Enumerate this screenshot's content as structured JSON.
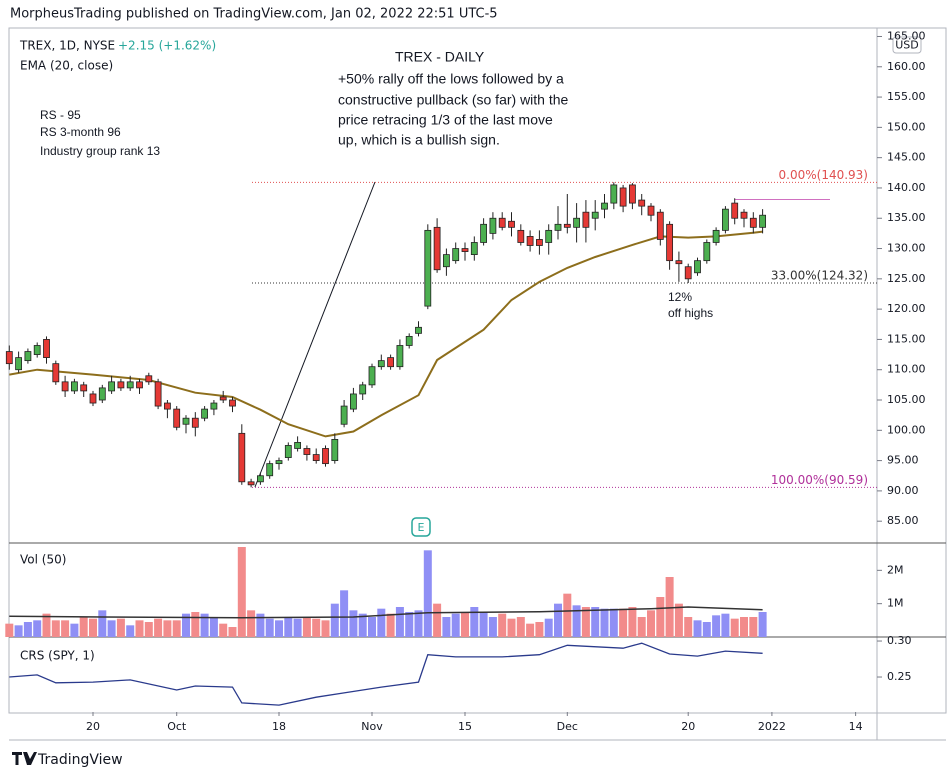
{
  "header": {
    "published": "MorpheusTrading published on TradingView.com, Jan 02, 2022 22:51 UTC-5",
    "currency": "USD",
    "footer": "TradingView"
  },
  "chart_data": [
    {
      "type": "candlestick",
      "title": "TREX, 1D, NYSE",
      "change": "+2.15 (+1.62%)",
      "ema_label": "EMA (20, close)",
      "up_color": "#4caf50",
      "down_color": "#e53935",
      "xlim": [
        0.075,
        93.3
      ],
      "ylim": [
        81.4,
        166.4
      ],
      "yticks": [
        {
          "value": 85,
          "label": "85.00"
        },
        {
          "value": 90,
          "label": "90.00"
        },
        {
          "value": 95,
          "label": "95.00"
        },
        {
          "value": 100,
          "label": "100.00"
        },
        {
          "value": 105,
          "label": "105.00"
        },
        {
          "value": 110,
          "label": "110.00"
        },
        {
          "value": 115,
          "label": "115.00"
        },
        {
          "value": 120,
          "label": "120.00"
        },
        {
          "value": 125,
          "label": "125.00"
        },
        {
          "value": 130,
          "label": "130.00"
        },
        {
          "value": 135,
          "label": "135.00"
        },
        {
          "value": 140,
          "label": "140.00"
        },
        {
          "value": 145,
          "label": "145.00"
        },
        {
          "value": 150,
          "label": "150.00"
        },
        {
          "value": 155,
          "label": "155.00"
        },
        {
          "value": 160,
          "label": "160.00"
        },
        {
          "value": 165,
          "label": "165.00"
        }
      ],
      "x": [
        0,
        1,
        2,
        3,
        4,
        5,
        6,
        7,
        8,
        9,
        10,
        11,
        12,
        13,
        14,
        15,
        16,
        17,
        18,
        19,
        20,
        21,
        22,
        23,
        24,
        25,
        26,
        27,
        28,
        29,
        30,
        31,
        32,
        33,
        34,
        35,
        36,
        37,
        38,
        39,
        40,
        41,
        42,
        43,
        44,
        45,
        46,
        47,
        48,
        49,
        50,
        51,
        52,
        53,
        54,
        55,
        56,
        57,
        58,
        59,
        60,
        61,
        62,
        63,
        64,
        65,
        66,
        67,
        68,
        69,
        70,
        71,
        72,
        73,
        74,
        75,
        76,
        77,
        78,
        79,
        80,
        81
      ],
      "open": [
        113,
        110,
        111.5,
        112.5,
        115,
        111,
        108,
        106.5,
        107.5,
        106,
        105,
        106.5,
        108,
        107,
        108,
        109,
        108,
        104.5,
        103.5,
        101,
        102,
        102,
        103.5,
        105.5,
        105,
        99.5,
        91.5,
        91.5,
        92.5,
        94.5,
        95.5,
        97,
        97,
        96,
        97,
        95,
        101,
        103.5,
        106,
        107.5,
        110.5,
        112,
        110.5,
        114,
        116,
        120.5,
        133.5,
        127,
        128,
        130,
        129,
        131,
        132.5,
        135,
        134.5,
        133,
        132,
        131.5,
        131,
        133,
        134,
        133.5,
        136,
        135,
        136.5,
        137.5,
        140,
        140.5,
        138,
        137,
        136,
        134,
        128,
        127,
        126,
        128,
        131,
        133,
        137.5,
        136,
        135,
        133.5
      ],
      "high": [
        114,
        113,
        113.5,
        114.5,
        115.5,
        111.5,
        109,
        108.5,
        108,
        106.5,
        107.5,
        109,
        108.5,
        109,
        108.5,
        109.5,
        108.5,
        105,
        104,
        102.5,
        103,
        104,
        105,
        106.5,
        105.5,
        101,
        92,
        93,
        95,
        95.5,
        98,
        99,
        97.5,
        97,
        97.5,
        99.5,
        105,
        107,
        108,
        111,
        112.5,
        112.5,
        115,
        116,
        118,
        134,
        135,
        130,
        131,
        131,
        132,
        135,
        136,
        136,
        136,
        134,
        133,
        133,
        134,
        137,
        139,
        137.5,
        138,
        138,
        139,
        140.93,
        140.5,
        140.8,
        139,
        137.5,
        136.5,
        134.5,
        129.5,
        127.5,
        128.5,
        131.5,
        133.5,
        137,
        138.3,
        136.5,
        136,
        136.5
      ],
      "low": [
        110,
        109.5,
        111,
        112,
        111,
        107.5,
        105.5,
        106,
        105.5,
        104,
        104.5,
        106,
        106.5,
        106.5,
        106,
        107.5,
        103.5,
        102,
        100,
        99.5,
        99,
        101.5,
        102.5,
        104.5,
        103,
        91,
        90.59,
        91,
        92,
        93.5,
        95,
        96.5,
        95,
        94.5,
        94,
        94.5,
        100.5,
        103,
        105,
        107,
        110,
        110,
        110,
        113.5,
        115.5,
        120,
        126,
        125.5,
        127.5,
        128,
        128,
        130.5,
        131.5,
        133,
        132,
        130.5,
        129.5,
        129,
        129,
        131.5,
        132.5,
        131,
        131,
        133,
        135,
        136.5,
        136,
        136.5,
        135.5,
        134.5,
        130.5,
        126.5,
        124.5,
        124.32,
        125.5,
        127.5,
        130.5,
        132.5,
        134,
        133.5,
        132.5,
        132.5
      ],
      "close": [
        111,
        112,
        113,
        114,
        112,
        108,
        106.5,
        108,
        106.5,
        104.5,
        107,
        108,
        107,
        108,
        107,
        108,
        104,
        103.5,
        100.5,
        102,
        100.5,
        103.5,
        104.5,
        105,
        104,
        91.5,
        91,
        92.5,
        94.5,
        95,
        97.5,
        98,
        96,
        95,
        94.5,
        98.5,
        104,
        106,
        107.5,
        110.5,
        111.5,
        110.5,
        114,
        115.5,
        117,
        133,
        126.5,
        129,
        130,
        129.5,
        131,
        134,
        135,
        133.5,
        133.5,
        131,
        130.5,
        130.5,
        133,
        134,
        133.5,
        135,
        133.5,
        136,
        137.5,
        140.5,
        137,
        137.5,
        137,
        135.5,
        131.5,
        128,
        127.5,
        125,
        128,
        131,
        133,
        136.5,
        135,
        135,
        133.5,
        135.5
      ],
      "ema": {
        "color": "#8d6e1c",
        "x": [
          0,
          3,
          9,
          15,
          20,
          24,
          27,
          30,
          34,
          37,
          40,
          44,
          46,
          51,
          54,
          57,
          60,
          63,
          67,
          70,
          73,
          76,
          80,
          81
        ],
        "values": [
          109.2,
          110,
          109.2,
          108.3,
          106.2,
          105.5,
          103.4,
          101,
          99,
          99.8,
          102.5,
          105.8,
          111.6,
          116.6,
          121.5,
          124.5,
          126.8,
          128.6,
          130.6,
          132,
          131.8,
          132,
          132.6,
          132.8
        ]
      },
      "fibs": [
        {
          "label": "0.00%(140.93)",
          "value": 140.93,
          "color": "#e05050"
        },
        {
          "label": "33.00%(124.32)",
          "value": 124.32,
          "color": "#333333"
        },
        {
          "label": "100.00%(90.59)",
          "value": 90.59,
          "color": "#b0309a"
        }
      ],
      "resistance": {
        "value": 138.1,
        "color": "#d070c0"
      },
      "annotations": {
        "title": "TREX - DAILY",
        "note": [
          "+50% rally off the lows followed by a",
          "constructive pullback (so far) with the",
          "price retracing 1/3 of the last move",
          "up, which is a bullish sign."
        ],
        "rs": [
          "RS - 95",
          "RS 3-month 96",
          "Industry group rank 13"
        ],
        "pullback": [
          "12%",
          "off highs"
        ],
        "earnings": "E"
      }
    },
    {
      "type": "bar",
      "title": "Vol (50)",
      "up_color": "#8f8ff5",
      "down_color": "#f28b8b",
      "xlim": [
        0.075,
        93.3
      ],
      "ylim": [
        0,
        2820000
      ],
      "yticks": [
        {
          "value": 1000000,
          "label": "1M"
        },
        {
          "value": 2000000,
          "label": "2M"
        }
      ],
      "x": [
        0,
        1,
        2,
        3,
        4,
        5,
        6,
        7,
        8,
        9,
        10,
        11,
        12,
        13,
        14,
        15,
        16,
        17,
        18,
        19,
        20,
        21,
        22,
        23,
        24,
        25,
        26,
        27,
        28,
        29,
        30,
        31,
        32,
        33,
        34,
        35,
        36,
        37,
        38,
        39,
        40,
        41,
        42,
        43,
        44,
        45,
        46,
        47,
        48,
        49,
        50,
        51,
        52,
        53,
        54,
        55,
        56,
        57,
        58,
        59,
        60,
        61,
        62,
        63,
        64,
        65,
        66,
        67,
        68,
        69,
        70,
        71,
        72,
        73,
        74,
        75,
        76,
        77,
        78,
        79,
        80,
        81
      ],
      "values": [
        400000,
        350000,
        450000,
        500000,
        700000,
        500000,
        500000,
        400000,
        600000,
        550000,
        800000,
        500000,
        550000,
        350000,
        500000,
        450000,
        550000,
        500000,
        500000,
        700000,
        750000,
        700000,
        600000,
        400000,
        300000,
        2700000,
        800000,
        700000,
        550000,
        500000,
        600000,
        550000,
        600000,
        550000,
        500000,
        1000000,
        1400000,
        800000,
        700000,
        600000,
        850000,
        700000,
        900000,
        750000,
        800000,
        2600000,
        1000000,
        600000,
        700000,
        750000,
        900000,
        750000,
        600000,
        700000,
        550000,
        600000,
        400000,
        450000,
        550000,
        1000000,
        1300000,
        950000,
        900000,
        900000,
        850000,
        850000,
        850000,
        900000,
        600000,
        800000,
        1200000,
        1800000,
        1000000,
        600000,
        500000,
        450000,
        650000,
        700000,
        550000,
        600000,
        600000,
        750000
      ],
      "ma": {
        "color": "#333333",
        "x": [
          0,
          10,
          25,
          37,
          45,
          57,
          69,
          73,
          81
        ],
        "values": [
          620000,
          600000,
          580000,
          600000,
          730000,
          760000,
          850000,
          900000,
          820000
        ]
      }
    },
    {
      "type": "line",
      "title": "CRS (SPY, 1)",
      "color": "#2a3a8c",
      "xlim": [
        0.075,
        93.3
      ],
      "ylim": [
        0.2014,
        0.3056
      ],
      "yticks": [
        {
          "value": 0.25,
          "label": "0.25"
        },
        {
          "value": 0.3,
          "label": "0.30"
        }
      ],
      "xticks": [
        {
          "value": 9,
          "label": "20"
        },
        {
          "value": 18,
          "label": "Oct"
        },
        {
          "value": 29,
          "label": "18"
        },
        {
          "value": 39,
          "label": "Nov"
        },
        {
          "value": 49,
          "label": "15"
        },
        {
          "value": 60,
          "label": "Dec"
        },
        {
          "value": 73,
          "label": "20"
        },
        {
          "value": 82,
          "label": "2022"
        },
        {
          "value": 91,
          "label": "14"
        }
      ],
      "x": [
        0,
        3,
        5,
        9,
        13,
        18,
        20,
        24,
        25,
        29,
        33,
        36,
        40,
        44,
        45,
        48,
        53,
        57,
        60,
        66,
        68,
        71,
        74,
        77,
        81
      ],
      "values": [
        0.25,
        0.253,
        0.242,
        0.243,
        0.246,
        0.232,
        0.2375,
        0.236,
        0.214,
        0.211,
        0.222,
        0.228,
        0.236,
        0.243,
        0.281,
        0.278,
        0.278,
        0.281,
        0.294,
        0.29,
        0.297,
        0.282,
        0.279,
        0.286,
        0.283
      ]
    }
  ]
}
